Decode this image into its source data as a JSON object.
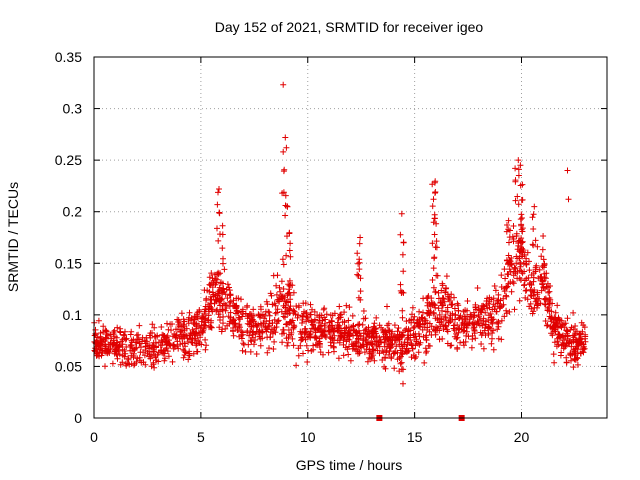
{
  "chart_data": {
    "type": "scatter",
    "title": "Day 152 of 2021, SRMTID for receiver igeo",
    "xlabel": "GPS time / hours",
    "ylabel": "SRMTID / TECUs",
    "xlim": [
      0,
      24
    ],
    "ylim": [
      0,
      0.35
    ],
    "x_ticks": [
      0,
      5,
      10,
      15,
      20
    ],
    "x_tick_labels": [
      "0",
      "5",
      "10",
      "15",
      "20"
    ],
    "y_ticks": [
      0,
      0.05,
      0.1,
      0.15,
      0.2,
      0.25,
      0.3,
      0.35
    ],
    "y_tick_labels": [
      "0",
      "0.05",
      "0.1",
      "0.15",
      "0.2",
      "0.25",
      "0.3",
      "0.35"
    ],
    "grid": true,
    "marker": "+",
    "color": "#e00000",
    "zero_points": [
      13.35,
      17.2
    ],
    "envelope": {
      "hours": [
        0,
        1,
        2,
        3,
        4,
        5,
        5.5,
        6,
        7,
        8,
        8.7,
        9.2,
        10,
        11,
        12,
        13,
        14,
        14.5,
        15,
        16,
        16.5,
        17,
        18,
        18.5,
        19,
        19.5,
        20,
        20.5,
        21,
        21.5,
        22,
        22.5,
        23
      ],
      "median": [
        0.075,
        0.07,
        0.065,
        0.07,
        0.08,
        0.085,
        0.12,
        0.11,
        0.09,
        0.085,
        0.11,
        0.1,
        0.085,
        0.085,
        0.08,
        0.075,
        0.075,
        0.07,
        0.085,
        0.1,
        0.11,
        0.09,
        0.095,
        0.1,
        0.1,
        0.15,
        0.16,
        0.12,
        0.13,
        0.09,
        0.075,
        0.07,
        0.075
      ],
      "spread": [
        0.02,
        0.022,
        0.022,
        0.022,
        0.025,
        0.028,
        0.035,
        0.03,
        0.028,
        0.03,
        0.045,
        0.035,
        0.028,
        0.025,
        0.025,
        0.025,
        0.03,
        0.03,
        0.03,
        0.035,
        0.04,
        0.03,
        0.03,
        0.03,
        0.035,
        0.04,
        0.04,
        0.03,
        0.035,
        0.028,
        0.025,
        0.025,
        0.022
      ]
    },
    "outliers": [
      {
        "x": 8.85,
        "y": 0.323
      },
      {
        "x": 8.95,
        "y": 0.272
      },
      {
        "x": 9.0,
        "y": 0.262
      },
      {
        "x": 8.85,
        "y": 0.258
      },
      {
        "x": 5.85,
        "y": 0.222
      },
      {
        "x": 8.8,
        "y": 0.218
      },
      {
        "x": 19.85,
        "y": 0.25
      },
      {
        "x": 19.95,
        "y": 0.245
      },
      {
        "x": 19.7,
        "y": 0.242
      },
      {
        "x": 22.15,
        "y": 0.24
      },
      {
        "x": 15.95,
        "y": 0.228
      },
      {
        "x": 22.2,
        "y": 0.212
      },
      {
        "x": 14.4,
        "y": 0.198
      },
      {
        "x": 12.45,
        "y": 0.175
      },
      {
        "x": 20.6,
        "y": 0.205
      }
    ]
  }
}
